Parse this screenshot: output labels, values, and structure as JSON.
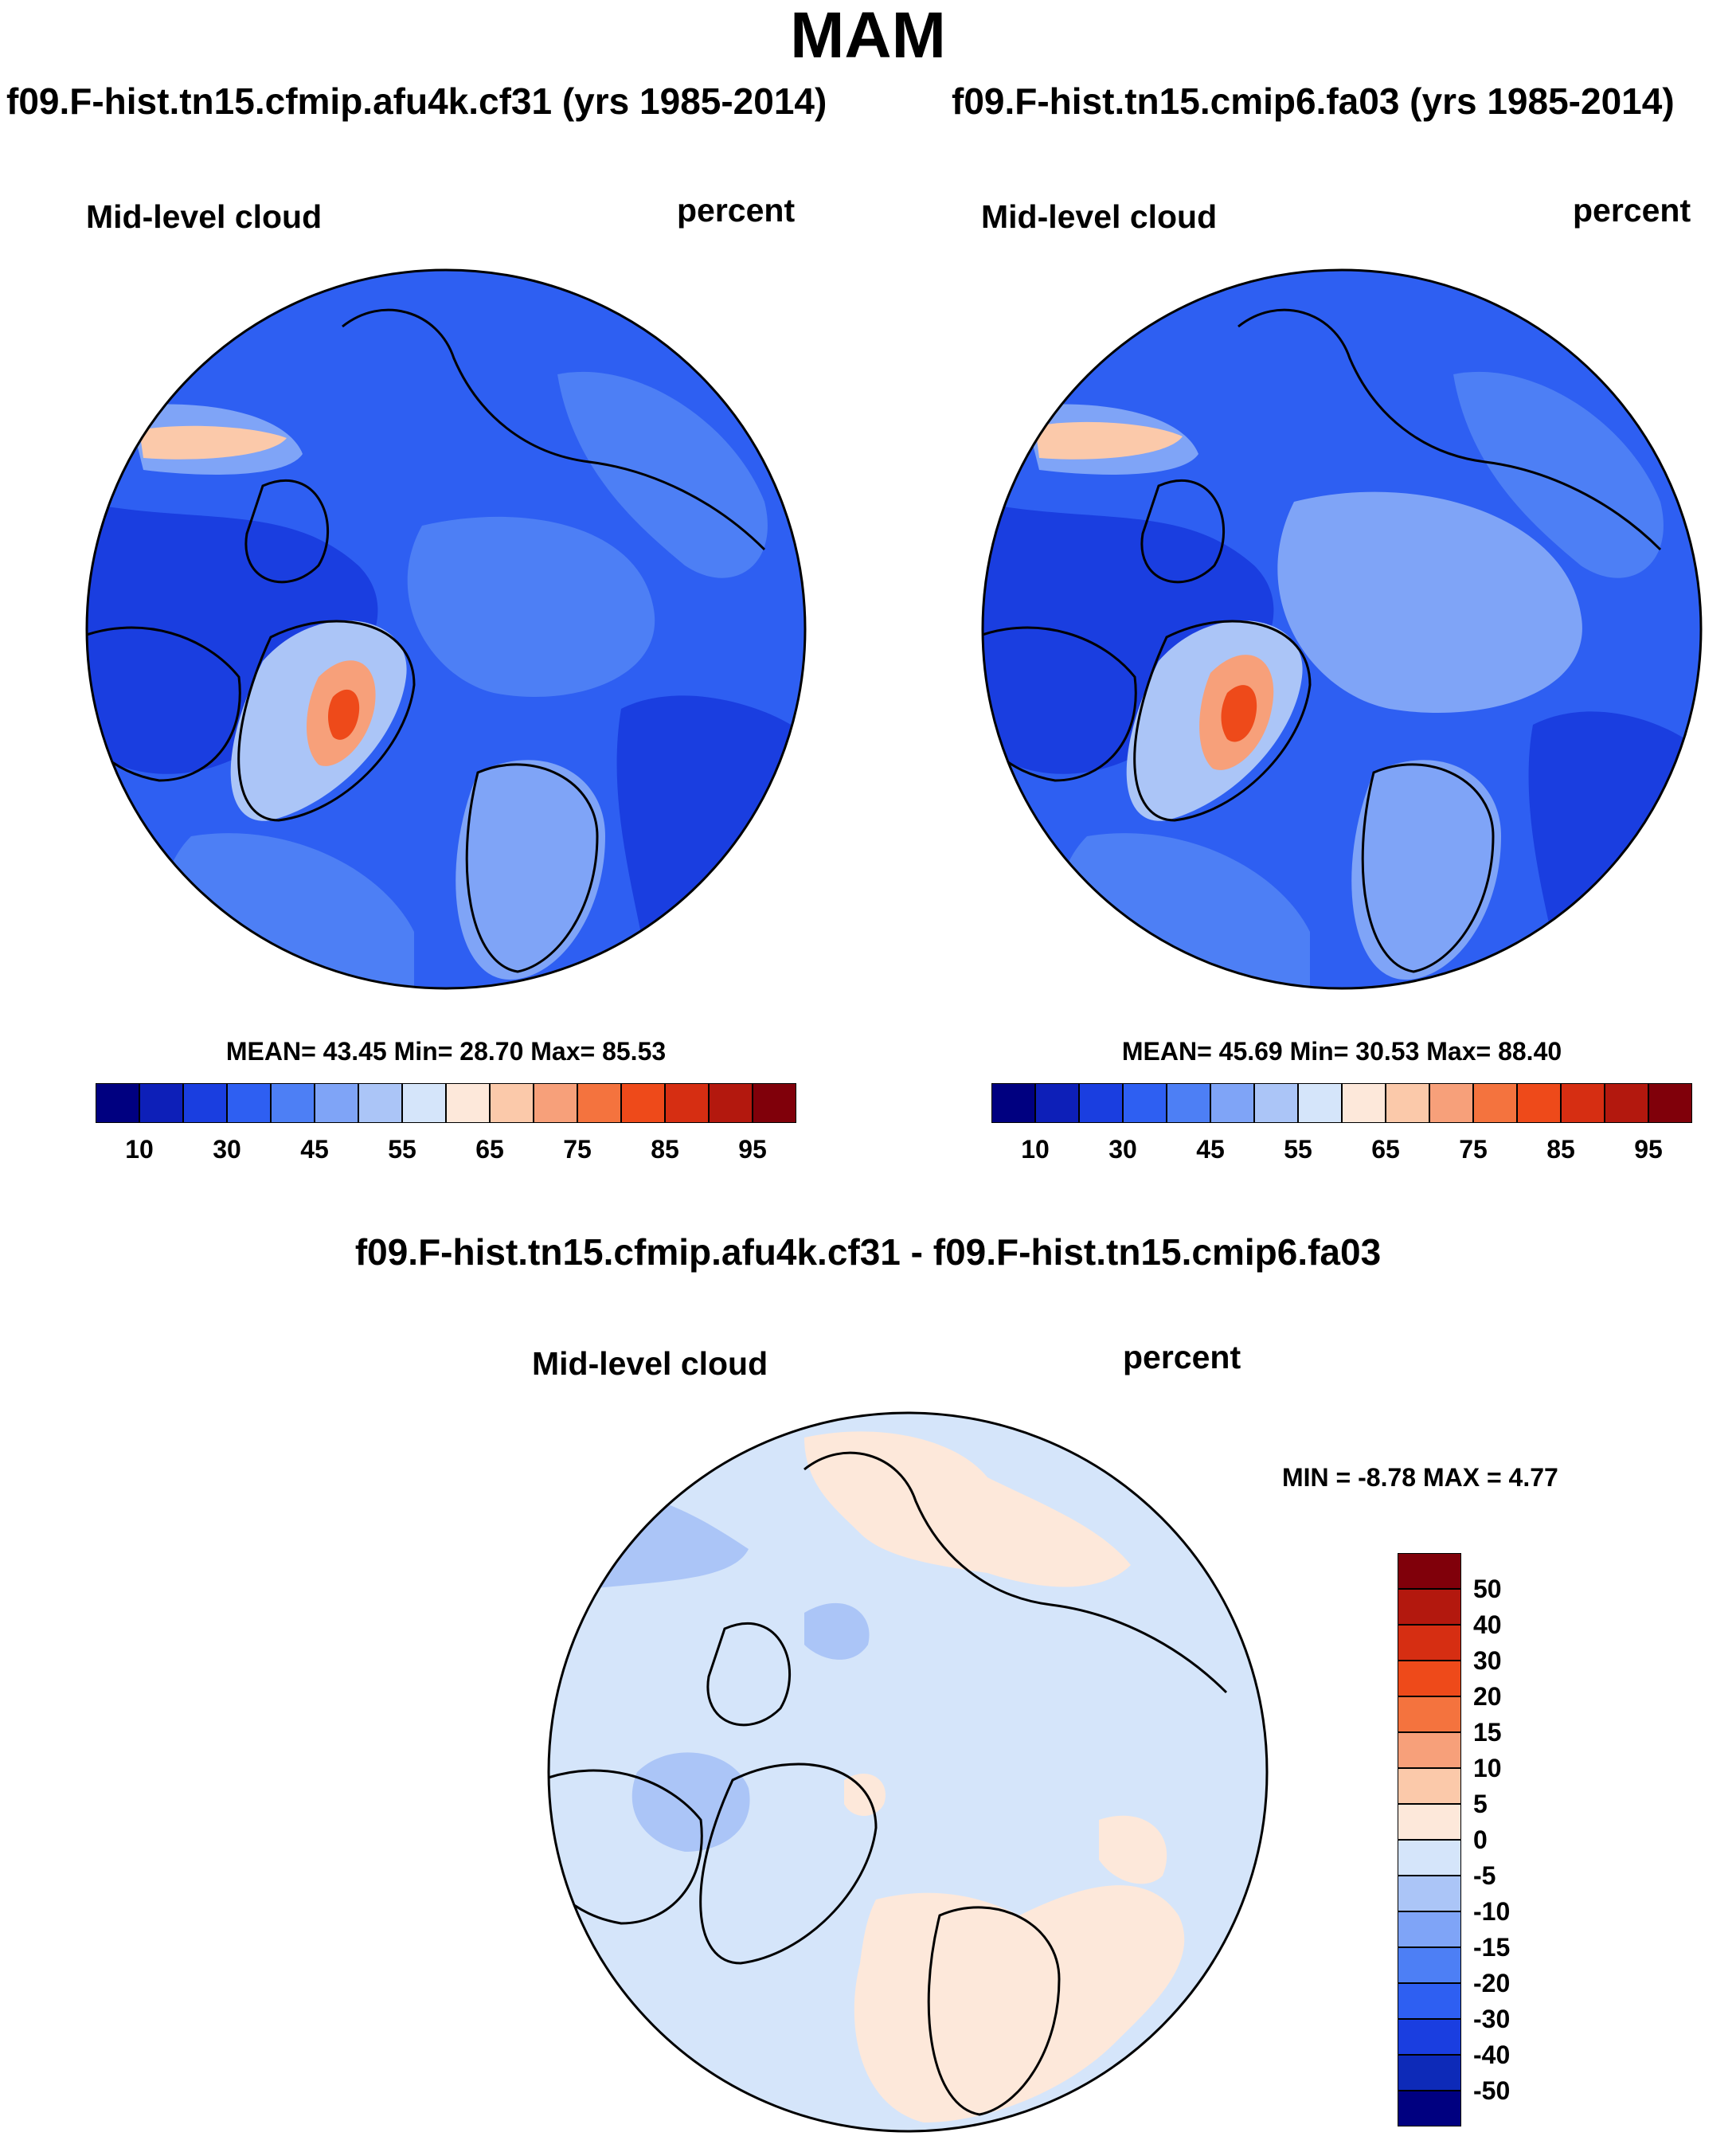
{
  "title": "MAM",
  "colors": {
    "abs_scale": [
      "#000080",
      "#0d1fb8",
      "#1a3ee0",
      "#2e5ff2",
      "#4d7ff5",
      "#7fa4f7",
      "#abc5f7",
      "#d5e5fa",
      "#fde8da",
      "#fbc9aa",
      "#f7a07a",
      "#f4733e",
      "#ee4a1a",
      "#d62e12",
      "#b3180e",
      "#80000a"
    ],
    "diff_scale": [
      "#000080",
      "#0d2ab8",
      "#1a3ee0",
      "#2e5ff2",
      "#4d7ff5",
      "#7fa4f7",
      "#abc5f7",
      "#d5e5fa",
      "#fde8da",
      "#fbc9aa",
      "#f7a07a",
      "#f4733e",
      "#ee4a1a",
      "#d62e12",
      "#b3180e",
      "#80000a"
    ],
    "land_outline": "#000000",
    "map_edge": "#000000"
  },
  "panels": {
    "left": {
      "case_title": "f09.F-hist.tn15.cfmip.afu4k.cf31 (yrs 1985-2014)",
      "variable": "Mid-level cloud",
      "units": "percent",
      "stats": "MEAN=  43.45   Min=  28.70   Max=  85.53",
      "colorbar_ticks": [
        "10",
        "30",
        "45",
        "55",
        "65",
        "75",
        "85",
        "95"
      ]
    },
    "right": {
      "case_title": "f09.F-hist.tn15.cmip6.fa03 (yrs 1985-2014)",
      "variable": "Mid-level cloud",
      "units": "percent",
      "stats": "MEAN=  45.69   Min=  30.53   Max=  88.40",
      "colorbar_ticks": [
        "10",
        "30",
        "45",
        "55",
        "65",
        "75",
        "85",
        "95"
      ]
    },
    "diff": {
      "case_title": "f09.F-hist.tn15.cfmip.afu4k.cf31 - f09.F-hist.tn15.cmip6.fa03",
      "variable": "Mid-level cloud",
      "units": "percent",
      "stats": "MIN =  -8.78  MAX =   4.77",
      "colorbar_ticks": [
        "50",
        "40",
        "30",
        "20",
        "15",
        "10",
        "5",
        "0",
        "-5",
        "-10",
        "-15",
        "-20",
        "-30",
        "-40",
        "-50"
      ]
    }
  },
  "chart_data": [
    {
      "type": "heatmap",
      "projection": "north polar stereographic",
      "title": "f09.F-hist.tn15.cfmip.afu4k.cf31 (yrs 1985-2014)",
      "variable": "Mid-level cloud",
      "units": "percent",
      "mean": 43.45,
      "min": 28.7,
      "max": 85.53,
      "contour_levels": [
        10,
        15,
        20,
        25,
        30,
        35,
        40,
        45,
        50,
        55,
        60,
        65,
        70,
        75,
        80,
        85,
        90,
        95
      ],
      "colorbar_labels": [
        10,
        30,
        45,
        55,
        65,
        75,
        85,
        95
      ]
    },
    {
      "type": "heatmap",
      "projection": "north polar stereographic",
      "title": "f09.F-hist.tn15.cmip6.fa03 (yrs 1985-2014)",
      "variable": "Mid-level cloud",
      "units": "percent",
      "mean": 45.69,
      "min": 30.53,
      "max": 88.4,
      "contour_levels": [
        10,
        15,
        20,
        25,
        30,
        35,
        40,
        45,
        50,
        55,
        60,
        65,
        70,
        75,
        80,
        85,
        90,
        95
      ],
      "colorbar_labels": [
        10,
        30,
        45,
        55,
        65,
        75,
        85,
        95
      ]
    },
    {
      "type": "heatmap",
      "projection": "north polar stereographic",
      "title": "f09.F-hist.tn15.cfmip.afu4k.cf31 - f09.F-hist.tn15.cmip6.fa03",
      "variable": "Mid-level cloud",
      "units": "percent",
      "min": -8.78,
      "max": 4.77,
      "contour_levels": [
        -50,
        -40,
        -30,
        -20,
        -15,
        -10,
        -5,
        0,
        5,
        10,
        15,
        20,
        30,
        40,
        50
      ],
      "colorbar_labels": [
        50,
        40,
        30,
        20,
        15,
        10,
        5,
        0,
        -5,
        -10,
        -15,
        -20,
        -30,
        -40,
        -50
      ]
    }
  ]
}
